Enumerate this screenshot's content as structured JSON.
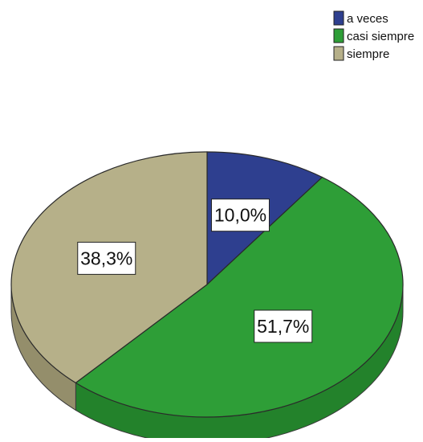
{
  "chart_data": {
    "type": "pie",
    "variant": "3d",
    "categories": [
      "a veces",
      "casi siempre",
      "siempre"
    ],
    "values": [
      10.0,
      51.7,
      38.3
    ],
    "labels": [
      "10,0%",
      "51,7%",
      "38,3%"
    ],
    "colors": [
      "#2e3f8f",
      "#2e9e37",
      "#b6b089"
    ],
    "side_colors": [
      "#1f2c66",
      "#23822b",
      "#948e6b"
    ],
    "legend_position": "top-right"
  }
}
